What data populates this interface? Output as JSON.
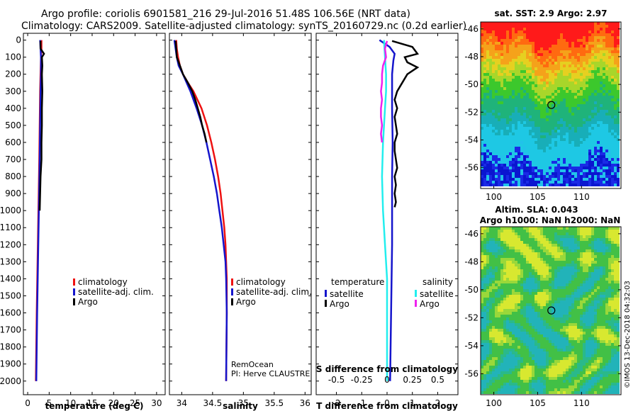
{
  "header": {
    "line1": "Argo profile: coriolis 6901581_216 29-Jul-2016 51.48S 106.56E (NRT data)",
    "line2": "Climatology: CARS2009. Satellite-adjusted climatology: synTS_20160729.nc (0.2d earlier)"
  },
  "colors": {
    "red": "#ee1111",
    "blue": "#1515cc",
    "black": "#000000",
    "cyan": "#22eeee",
    "magenta": "#ee22ee"
  },
  "chart_data": [
    {
      "type": "line",
      "id": "temperature",
      "xlabel": "temperature (deg C)",
      "xlim": [
        -1,
        32
      ],
      "xticks": [
        0,
        5,
        10,
        15,
        20,
        25,
        30
      ],
      "ylim": [
        2080,
        -40
      ],
      "yticks": [
        0,
        100,
        200,
        300,
        400,
        500,
        600,
        700,
        800,
        900,
        1000,
        1100,
        1200,
        1300,
        1400,
        1500,
        1600,
        1700,
        1800,
        1900,
        2000
      ],
      "legend": [
        "climatology",
        "satellite-adj. clim.",
        "Argo"
      ],
      "series": [
        {
          "name": "climatology",
          "color": "red",
          "depth": [
            0,
            50,
            100,
            200,
            300,
            500,
            700,
            1000,
            1300,
            1600,
            2000
          ],
          "values": [
            3.2,
            3.2,
            3.1,
            3.0,
            2.9,
            2.8,
            2.7,
            2.5,
            2.3,
            2.1,
            1.9
          ]
        },
        {
          "name": "satellite-adj. clim.",
          "color": "blue",
          "depth": [
            0,
            50,
            100,
            200,
            300,
            500,
            700,
            1000,
            1300,
            1600,
            2000
          ],
          "values": [
            2.9,
            3.0,
            3.1,
            3.1,
            3.0,
            2.9,
            2.8,
            2.6,
            2.4,
            2.2,
            2.0
          ]
        },
        {
          "name": "Argo",
          "color": "black",
          "depth": [
            5,
            50,
            80,
            100,
            150,
            200,
            300,
            400,
            500,
            600,
            700,
            800,
            900,
            1000
          ],
          "values": [
            2.97,
            3.0,
            3.8,
            3.3,
            3.4,
            3.3,
            3.4,
            3.3,
            3.3,
            3.2,
            3.2,
            3.0,
            2.9,
            2.8
          ]
        }
      ]
    },
    {
      "type": "line",
      "id": "salinity",
      "xlabel": "salinity",
      "xlim": [
        33.8,
        36.1
      ],
      "xticks": [
        34,
        34.5,
        35,
        35.5,
        36
      ],
      "ylim": [
        2080,
        -40
      ],
      "legend": [
        "climatology",
        "satellite-adj. clim.",
        "Argo"
      ],
      "series": [
        {
          "name": "climatology",
          "color": "red",
          "depth": [
            0,
            50,
            100,
            150,
            200,
            250,
            300,
            400,
            500,
            600,
            700,
            800,
            900,
            1000,
            1100,
            1200,
            1300,
            1400,
            1600,
            2000
          ],
          "values": [
            33.91,
            33.92,
            33.94,
            33.97,
            34.02,
            34.1,
            34.19,
            34.32,
            34.41,
            34.48,
            34.54,
            34.59,
            34.63,
            34.66,
            34.69,
            34.71,
            34.72,
            34.73,
            34.73,
            34.72
          ]
        },
        {
          "name": "satellite-adj. clim.",
          "color": "blue",
          "depth": [
            0,
            50,
            100,
            150,
            200,
            250,
            300,
            400,
            500,
            600,
            700,
            800,
            900,
            1000,
            1100,
            1200,
            1300,
            1400,
            1600,
            2000
          ],
          "values": [
            33.88,
            33.9,
            33.92,
            33.95,
            34.02,
            34.08,
            34.14,
            34.24,
            34.33,
            34.4,
            34.46,
            34.52,
            34.57,
            34.61,
            34.65,
            34.68,
            34.71,
            34.72,
            34.73,
            34.72
          ]
        },
        {
          "name": "Argo",
          "color": "black",
          "depth": [
            5,
            50,
            100,
            150,
            200,
            250,
            300,
            350,
            400,
            450,
            500,
            550,
            600
          ],
          "values": [
            33.9,
            33.91,
            33.92,
            33.97,
            34.02,
            34.1,
            34.17,
            34.22,
            34.26,
            34.3,
            34.33,
            34.37,
            34.4
          ]
        }
      ],
      "annotation": [
        "RemOcean",
        "PI: Herve CLAUSTRE"
      ]
    },
    {
      "type": "line",
      "id": "difference",
      "xlabel": "T difference from climatology",
      "xlabel2": "S difference from climatology",
      "xlim": [
        -2.8,
        2.8
      ],
      "xticks": [
        -2,
        -1,
        0,
        1,
        2
      ],
      "xticks_s": [
        -0.5,
        -0.25,
        0,
        0.25,
        0.5
      ],
      "xticklabels_s": [
        "-0.5",
        "-0.25",
        "0",
        "0.25",
        "0.5"
      ],
      "ylim": [
        2080,
        -40
      ],
      "legend": {
        "temperature_title": "temperature",
        "salinity_title": "salinity",
        "items": [
          "satellite",
          "Argo",
          "satellite",
          "Argo"
        ]
      },
      "series": [
        {
          "name": "temperature satellite",
          "color": "blue",
          "depth": [
            0,
            40,
            80,
            120,
            200,
            300,
            400,
            600,
            800,
            1000,
            1200,
            1400,
            1600,
            1800,
            2000
          ],
          "values": [
            -0.3,
            0.1,
            0.3,
            0.25,
            0.2,
            0.2,
            0.2,
            0.22,
            0.2,
            0.2,
            0.2,
            0.18,
            0.16,
            0.14,
            0.12
          ]
        },
        {
          "name": "temperature Argo",
          "color": "black",
          "depth": [
            5,
            40,
            80,
            100,
            130,
            160,
            200,
            250,
            300,
            350,
            400,
            450,
            500,
            550,
            600,
            650,
            700,
            750,
            800,
            850,
            900,
            950,
            980
          ],
          "values": [
            0.2,
            1.0,
            1.2,
            0.7,
            0.8,
            1.2,
            0.8,
            0.6,
            0.4,
            0.3,
            0.4,
            0.3,
            0.35,
            0.4,
            0.3,
            0.3,
            0.35,
            0.4,
            0.3,
            0.35,
            0.3,
            0.35,
            0.3
          ]
        },
        {
          "name": "salinity satellite",
          "color": "cyan",
          "depth": [
            0,
            100,
            200,
            300,
            400,
            600,
            800,
            1000,
            1200,
            1400,
            1600,
            1800,
            2000
          ],
          "values": [
            -0.03,
            -0.02,
            -0.01,
            -0.01,
            -0.02,
            -0.04,
            -0.05,
            -0.04,
            -0.02,
            0.0,
            0.0,
            0.0,
            0.0
          ]
        },
        {
          "name": "salinity Argo",
          "color": "magenta",
          "depth": [
            5,
            50,
            100,
            150,
            200,
            250,
            300,
            350,
            400,
            450,
            500,
            550,
            600
          ],
          "values": [
            0.0,
            -0.02,
            -0.01,
            -0.04,
            -0.05,
            -0.05,
            -0.06,
            -0.05,
            -0.06,
            -0.06,
            -0.05,
            -0.06,
            -0.05
          ]
        }
      ]
    },
    {
      "type": "heatmap",
      "id": "sst_map",
      "title": "sat. SST: 2.9 Argo: 2.97",
      "xticks": [
        100,
        105,
        110
      ],
      "yticks": [
        -46,
        -48,
        -50,
        -52,
        -54,
        -56
      ],
      "xlim": [
        98.5,
        114.5
      ],
      "ylim": [
        -57.5,
        -45.5
      ],
      "argo_location": [
        106.56,
        -51.48
      ]
    },
    {
      "type": "heatmap",
      "id": "sla_map",
      "title": "Altim. SLA: 0.043",
      "subtitle": "Argo h1000: NaN h2000: NaN",
      "xticks": [
        100,
        105,
        110
      ],
      "yticks": [
        -46,
        -48,
        -50,
        -52,
        -54,
        -56
      ],
      "xlim": [
        98.5,
        114.5
      ],
      "ylim": [
        -57.5,
        -45.5
      ],
      "argo_location": [
        106.56,
        -51.48
      ]
    }
  ],
  "credit": "©IMOS 13-Dec-2018 04:32:03"
}
